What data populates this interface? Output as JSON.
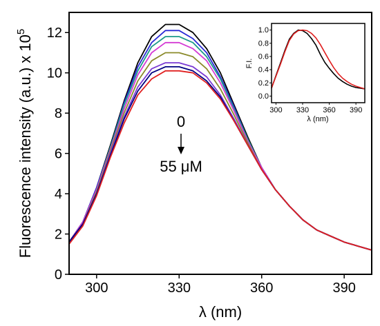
{
  "chart_data": [
    {
      "type": "line",
      "title": "",
      "xlabel": "λ (nm)",
      "ylabel": "Fluorescence intensity (a.u.) x 10",
      "ylabel_exponent": "5",
      "xlim": [
        290,
        400
      ],
      "ylim": [
        0,
        13
      ],
      "x_ticks": [
        300,
        330,
        360,
        390
      ],
      "y_ticks": [
        0,
        2,
        4,
        6,
        8,
        10,
        12
      ],
      "grid": false,
      "annotations": {
        "start": "0",
        "end": "55 μM"
      },
      "x": [
        290,
        295,
        300,
        305,
        310,
        315,
        320,
        325,
        330,
        335,
        340,
        345,
        350,
        355,
        360,
        365,
        370,
        375,
        380,
        385,
        390,
        395,
        400
      ],
      "series": [
        {
          "color": "#000000",
          "values": [
            1.6,
            2.6,
            4.3,
            6.4,
            8.6,
            10.5,
            11.8,
            12.4,
            12.4,
            12.0,
            11.2,
            10.0,
            8.4,
            6.8,
            5.3,
            4.2,
            3.4,
            2.7,
            2.2,
            1.9,
            1.6,
            1.4,
            1.2
          ]
        },
        {
          "color": "#2a2ad6",
          "values": [
            1.6,
            2.6,
            4.3,
            6.3,
            8.5,
            10.3,
            11.5,
            12.1,
            12.1,
            11.7,
            11.0,
            9.8,
            8.3,
            6.7,
            5.3,
            4.2,
            3.4,
            2.7,
            2.2,
            1.9,
            1.6,
            1.4,
            1.2
          ]
        },
        {
          "color": "#1a9a8a",
          "values": [
            1.6,
            2.6,
            4.2,
            6.3,
            8.4,
            10.1,
            11.3,
            11.8,
            11.8,
            11.5,
            10.8,
            9.7,
            8.2,
            6.7,
            5.3,
            4.2,
            3.4,
            2.7,
            2.2,
            1.9,
            1.6,
            1.4,
            1.2
          ]
        },
        {
          "color": "#d43ad4",
          "values": [
            1.6,
            2.6,
            4.2,
            6.2,
            8.2,
            9.9,
            11.0,
            11.5,
            11.5,
            11.2,
            10.6,
            9.5,
            8.1,
            6.6,
            5.3,
            4.2,
            3.4,
            2.7,
            2.2,
            1.9,
            1.6,
            1.4,
            1.2
          ]
        },
        {
          "color": "#8a8a2a",
          "values": [
            1.6,
            2.5,
            4.1,
            6.1,
            8.0,
            9.6,
            10.6,
            11.0,
            11.0,
            10.8,
            10.2,
            9.2,
            7.9,
            6.5,
            5.2,
            4.2,
            3.4,
            2.7,
            2.2,
            1.9,
            1.6,
            1.4,
            1.2
          ]
        },
        {
          "color": "#7a3ad4",
          "values": [
            1.6,
            2.5,
            4.0,
            6.0,
            7.8,
            9.3,
            10.2,
            10.5,
            10.5,
            10.3,
            9.8,
            8.9,
            7.7,
            6.4,
            5.2,
            4.2,
            3.4,
            2.7,
            2.2,
            1.9,
            1.6,
            1.4,
            1.2
          ]
        },
        {
          "color": "#000080",
          "values": [
            1.6,
            2.5,
            4.0,
            5.9,
            7.7,
            9.1,
            10.0,
            10.3,
            10.3,
            10.1,
            9.6,
            8.8,
            7.6,
            6.4,
            5.2,
            4.2,
            3.4,
            2.7,
            2.2,
            1.9,
            1.6,
            1.4,
            1.2
          ]
        },
        {
          "color": "#e02020",
          "values": [
            1.5,
            2.4,
            3.9,
            5.8,
            7.5,
            8.9,
            9.7,
            10.1,
            10.1,
            10.0,
            9.5,
            8.7,
            7.6,
            6.4,
            5.2,
            4.2,
            3.4,
            2.7,
            2.2,
            1.9,
            1.6,
            1.4,
            1.2
          ]
        }
      ]
    },
    {
      "type": "line",
      "title": "",
      "xlabel": "λ (nm)",
      "ylabel": "F.I.",
      "xlim": [
        295,
        400
      ],
      "ylim": [
        -0.1,
        1.1
      ],
      "x_ticks": [
        300,
        330,
        360,
        390
      ],
      "y_ticks": [
        0.0,
        0.2,
        0.4,
        0.6,
        0.8,
        1.0
      ],
      "grid": false,
      "legend": "none",
      "x": [
        295,
        300,
        305,
        310,
        315,
        320,
        325,
        330,
        335,
        340,
        345,
        350,
        355,
        360,
        365,
        370,
        375,
        380,
        385,
        390,
        395,
        400
      ],
      "series": [
        {
          "color": "#000000",
          "values": [
            0.12,
            0.31,
            0.5,
            0.69,
            0.86,
            0.95,
            1.0,
            0.99,
            0.95,
            0.87,
            0.77,
            0.63,
            0.51,
            0.42,
            0.34,
            0.27,
            0.22,
            0.18,
            0.15,
            0.13,
            0.12,
            0.11
          ]
        },
        {
          "color": "#e02020",
          "values": [
            0.12,
            0.3,
            0.48,
            0.67,
            0.84,
            0.94,
            0.99,
            1.0,
            0.99,
            0.95,
            0.88,
            0.78,
            0.66,
            0.54,
            0.43,
            0.34,
            0.27,
            0.22,
            0.18,
            0.15,
            0.13,
            0.11
          ]
        }
      ]
    }
  ]
}
